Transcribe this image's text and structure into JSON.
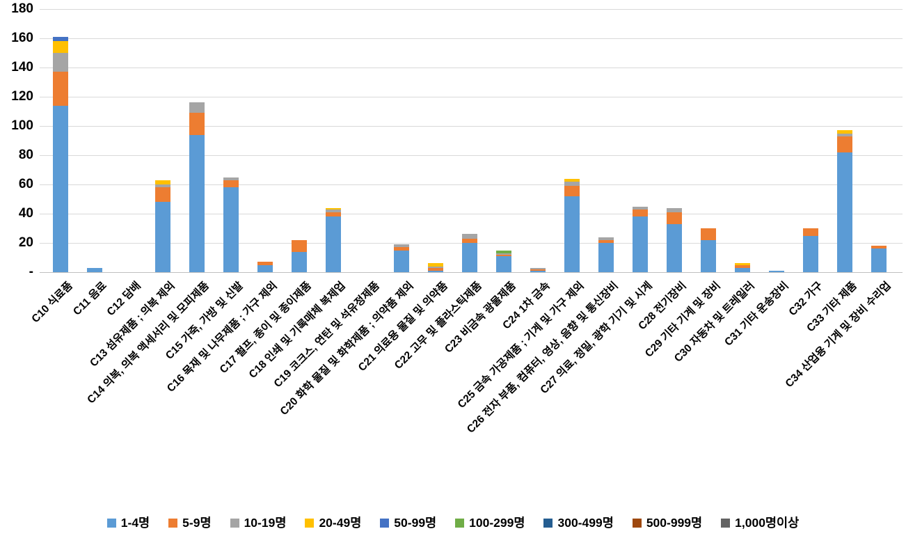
{
  "chart_data": {
    "type": "bar",
    "stacked": true,
    "title": "",
    "xlabel": "",
    "ylabel": "",
    "ylim": [
      0,
      180
    ],
    "ytick_step": 20,
    "zero_tick_label": "-",
    "grid": true,
    "legend_position": "bottom",
    "categories": [
      "C10 식료품",
      "C11 음료",
      "C12 담배",
      "C13 섬유제품 ; 의복 제외",
      "C14 의복, 의복 액세서리 및 모피제품",
      "C15 가죽, 가방 및 신발",
      "C16 목재 및 나무제품 ; 가구 제외",
      "C17 펄프, 종이 및 종이제품",
      "C18 인쇄 및 기록매체 복제업",
      "C19 코크스, 연탄 및 석유정제품",
      "C20 화학 물질 및 화학제품 ; 의약품 제외",
      "C21 의료용 물질 및 의약품",
      "C22 고무 및 플라스틱제품",
      "C23 비금속 광물제품",
      "C24 1차 금속",
      "C25 금속 가공제품 ; 기계 및 가구 제외",
      "C26 전자 부품, 컴퓨터, 영상, 음향 및 통신장비",
      "C27 의료, 정밀, 광학 기기 및 시계",
      "C28 전기장비",
      "C29 기타 기계 및 장비",
      "C30 자동차 및 트레일러",
      "C31 기타 운송장비",
      "C32 가구",
      "C33 기타 제품",
      "C34 산업용 기계 및 장비 수리업"
    ],
    "series": [
      {
        "name": "1-4명",
        "color": "#5B9BD5",
        "values": [
          114,
          3,
          0,
          48,
          94,
          58,
          5,
          14,
          38,
          0,
          15,
          1,
          20,
          11,
          1,
          52,
          20,
          38,
          33,
          22,
          3,
          1,
          25,
          82,
          16
        ]
      },
      {
        "name": "5-9명",
        "color": "#ED7D31",
        "values": [
          23,
          0,
          0,
          10,
          15,
          5,
          2,
          8,
          3,
          0,
          2,
          2,
          3,
          1,
          1,
          7,
          2,
          5,
          8,
          8,
          2,
          0,
          5,
          11,
          2
        ]
      },
      {
        "name": "10-19명",
        "color": "#A5A5A5",
        "values": [
          13,
          0,
          0,
          2,
          7,
          2,
          0,
          0,
          2,
          0,
          2,
          1,
          3,
          1,
          1,
          3,
          2,
          2,
          3,
          0,
          0,
          0,
          0,
          2,
          0
        ]
      },
      {
        "name": "20-49명",
        "color": "#FFC000",
        "values": [
          8,
          0,
          0,
          3,
          0,
          0,
          0,
          0,
          1,
          0,
          0,
          2,
          0,
          0,
          0,
          2,
          0,
          0,
          0,
          0,
          1,
          0,
          0,
          2,
          0
        ]
      },
      {
        "name": "50-99명",
        "color": "#4472C4",
        "values": [
          3,
          0,
          0,
          0,
          0,
          0,
          0,
          0,
          0,
          0,
          0,
          0,
          0,
          0,
          0,
          0,
          0,
          0,
          0,
          0,
          0,
          0,
          0,
          0,
          0
        ]
      },
      {
        "name": "100-299명",
        "color": "#70AD47",
        "values": [
          0,
          0,
          0,
          0,
          0,
          0,
          0,
          0,
          0,
          0,
          0,
          0,
          0,
          2,
          0,
          0,
          0,
          0,
          0,
          0,
          0,
          0,
          0,
          0,
          0
        ]
      },
      {
        "name": "300-499명",
        "color": "#255E91",
        "values": [
          0,
          0,
          0,
          0,
          0,
          0,
          0,
          0,
          0,
          0,
          0,
          0,
          0,
          0,
          0,
          0,
          0,
          0,
          0,
          0,
          0,
          0,
          0,
          0,
          0
        ]
      },
      {
        "name": "500-999명",
        "color": "#9E480E",
        "values": [
          0,
          0,
          0,
          0,
          0,
          0,
          0,
          0,
          0,
          0,
          0,
          0,
          0,
          0,
          0,
          0,
          0,
          0,
          0,
          0,
          0,
          0,
          0,
          0,
          0
        ]
      },
      {
        "name": "1,000명이상",
        "color": "#636363",
        "values": [
          0,
          0,
          0,
          0,
          0,
          0,
          0,
          0,
          0,
          0,
          0,
          0,
          0,
          0,
          0,
          0,
          0,
          0,
          0,
          0,
          0,
          0,
          0,
          0,
          0
        ]
      }
    ],
    "style": {
      "gridline_color": "#D9D9D9",
      "axisline_color": "#BFBFBF",
      "text_color": "#000000",
      "background": "#FFFFFF"
    }
  }
}
